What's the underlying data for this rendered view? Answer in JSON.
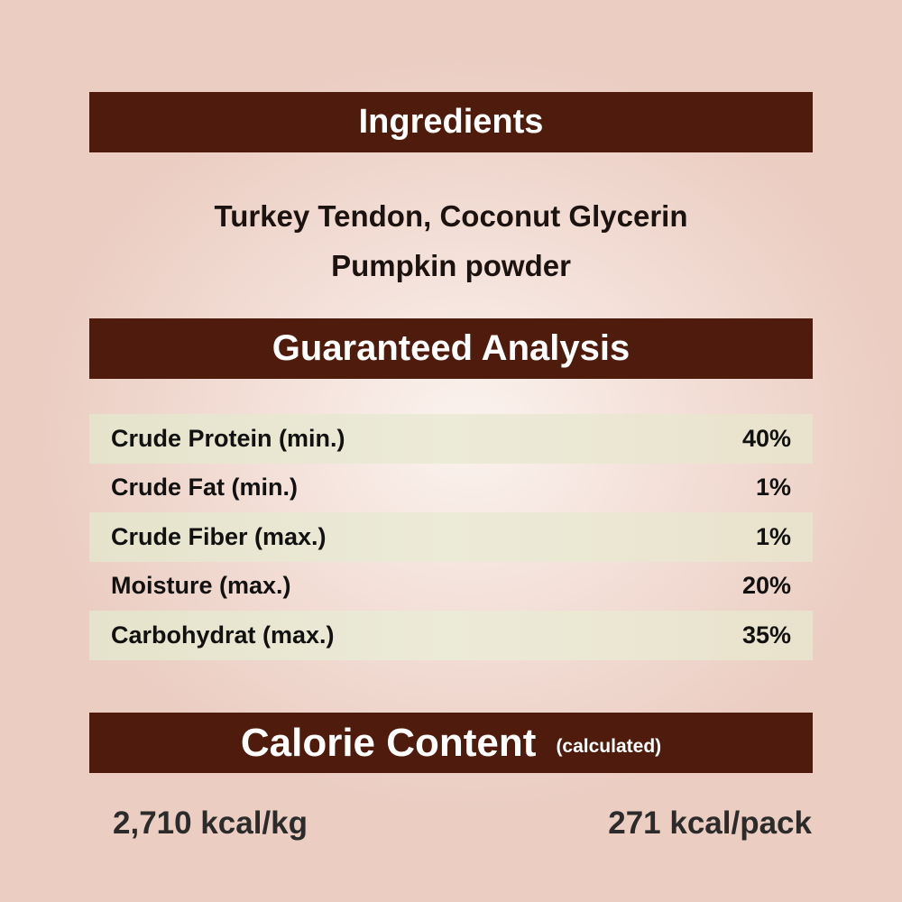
{
  "ingredients": {
    "title": "Ingredients",
    "lines": [
      "Turkey Tendon, Coconut Glycerin",
      "Pumpkin powder"
    ]
  },
  "analysis": {
    "title": "Guaranteed Analysis",
    "rows": [
      {
        "label": "Crude Protein (min.)",
        "value": "40%"
      },
      {
        "label": "Crude Fat (min.)",
        "value": "1%"
      },
      {
        "label": "Crude Fiber (max.)",
        "value": "1%"
      },
      {
        "label": "Moisture (max.)",
        "value": "20%"
      },
      {
        "label": "Carbohydrat (max.)",
        "value": "35%"
      }
    ]
  },
  "calorie": {
    "title": "Calorie Content",
    "note": "(calculated)",
    "per_kg": "2,710 kcal/kg",
    "per_pack": "271 kcal/pack"
  },
  "colors": {
    "banner": "#4f1b0d",
    "background": "#ebcdc2"
  }
}
